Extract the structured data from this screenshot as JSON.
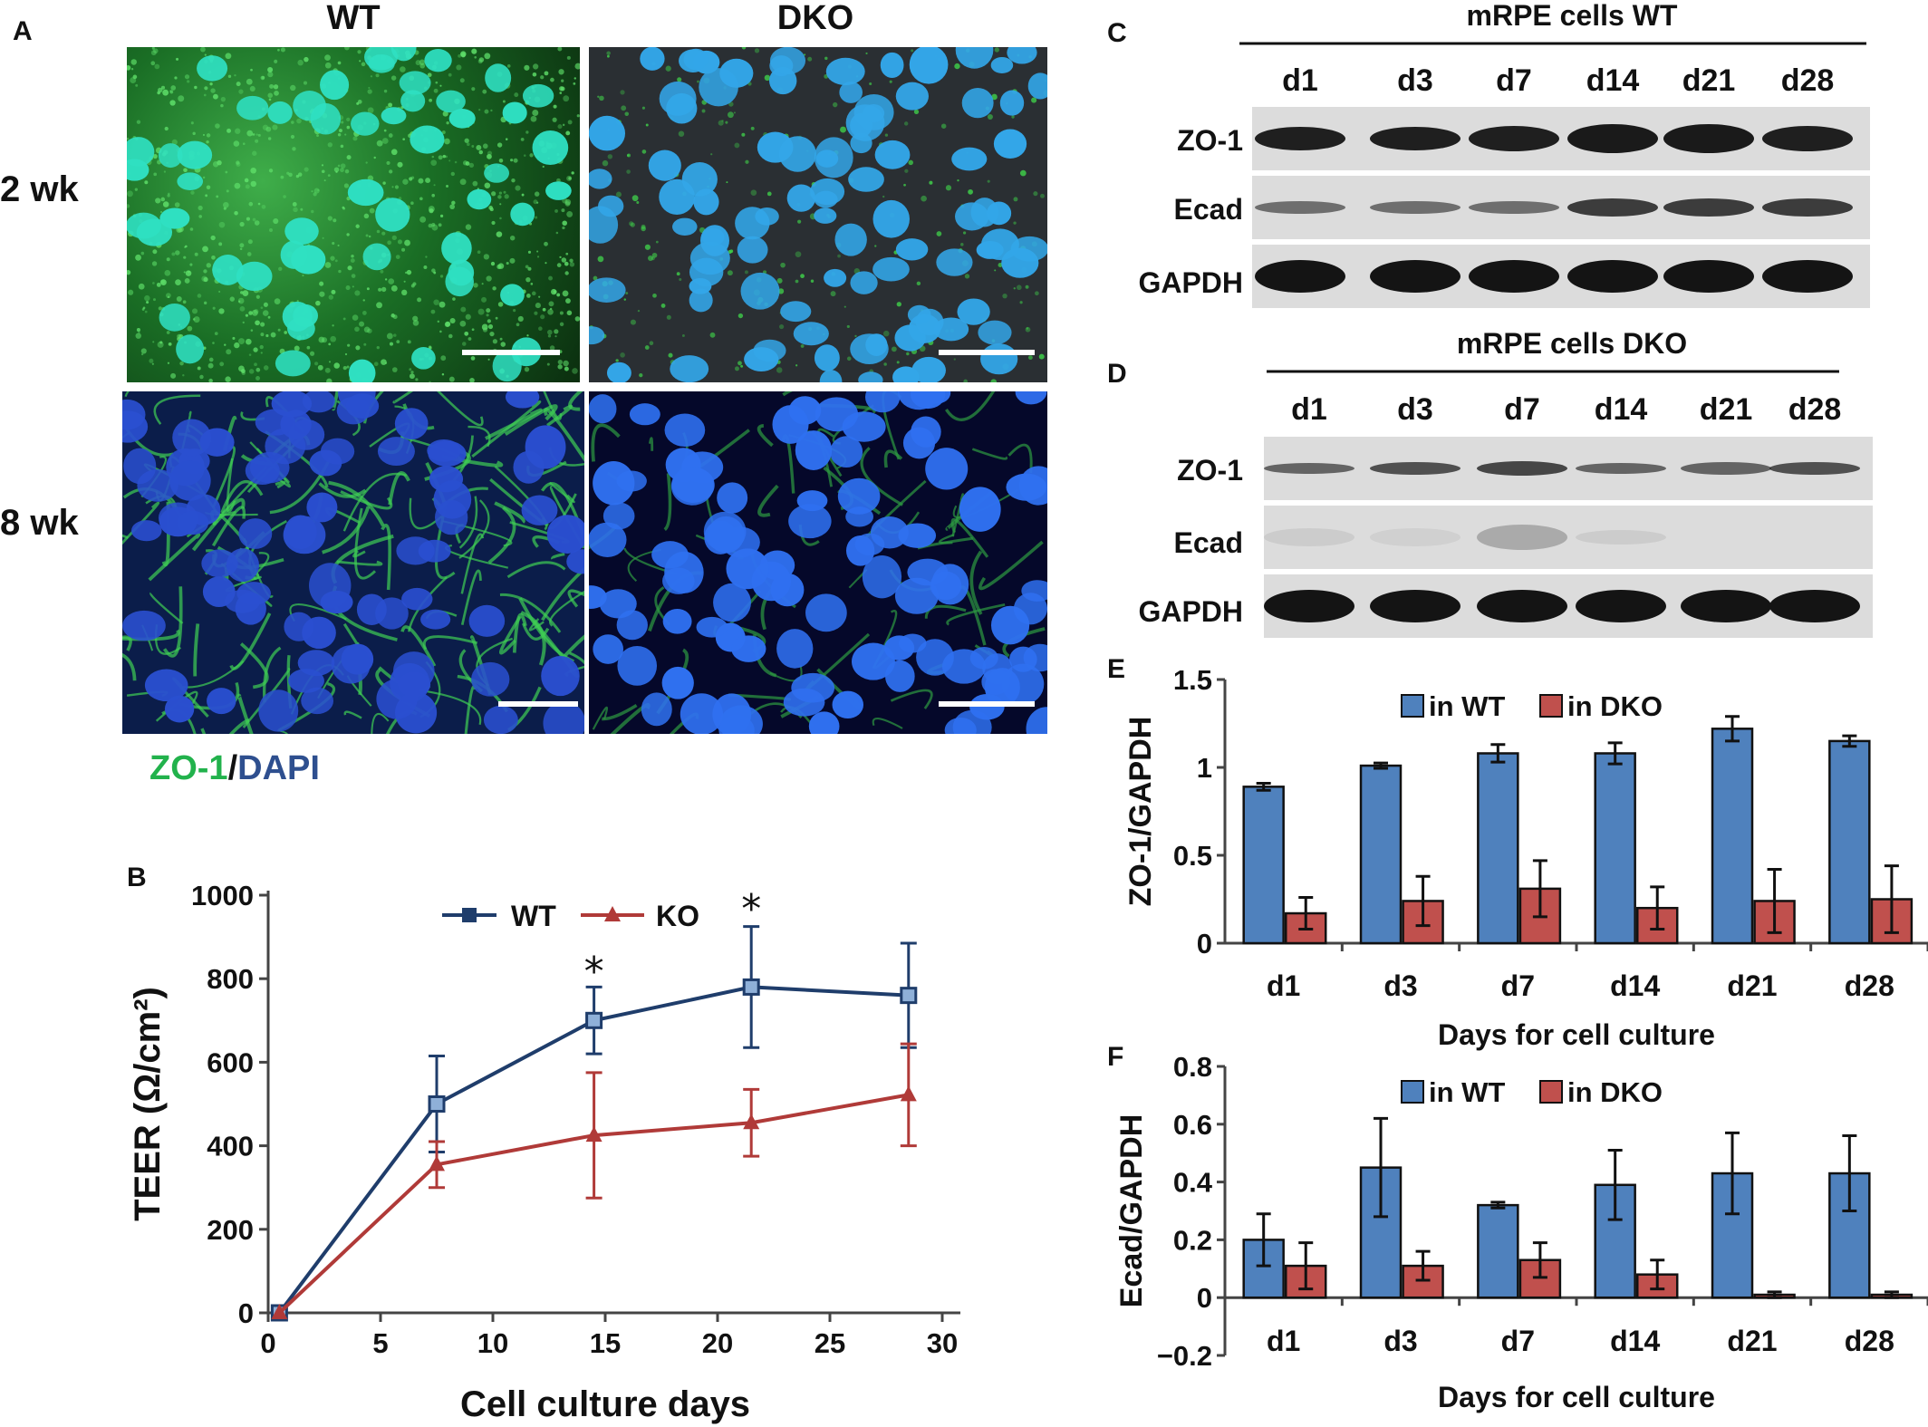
{
  "panel_letters": {
    "a": "A",
    "b": "B",
    "c": "C",
    "d": "D",
    "e": "E",
    "f": "F"
  },
  "panel_a": {
    "columns": [
      "WT",
      "DKO"
    ],
    "rows": [
      "2 wk",
      "8 wk"
    ],
    "stain_label_1": "ZO-1",
    "stain_label_sep": "/",
    "stain_label_2": "DAPI"
  },
  "panel_c": {
    "title": "mRPE cells WT",
    "lanes": [
      "d1",
      "d3",
      "d7",
      "d14",
      "d21",
      "d28"
    ],
    "rows": [
      "ZO-1",
      "Ecad",
      "GAPDH"
    ]
  },
  "panel_d": {
    "title": "mRPE cells DKO",
    "lanes": [
      "d1",
      "d3",
      "d7",
      "d14",
      "d21",
      "d28"
    ],
    "rows": [
      "ZO-1",
      "Ecad",
      "GAPDH"
    ]
  },
  "colors": {
    "wt_line": "#1f3d6b",
    "ko_line": "#b03a38",
    "bar_wt": "#4f81bd",
    "bar_dko": "#c0504d",
    "zo1_green": "#22b24c",
    "dapi_blue": "#2e4f8f"
  },
  "chart_data": [
    {
      "id": "B",
      "type": "line",
      "xlabel": "Cell culture days",
      "ylabel": "TEER (Ω/cm²)",
      "xlim": [
        0,
        30
      ],
      "ylim": [
        0,
        1000
      ],
      "xticks": [
        0,
        5,
        10,
        15,
        20,
        25,
        30
      ],
      "yticks": [
        0,
        200,
        400,
        600,
        800,
        1000
      ],
      "annotations": [
        {
          "text": "*",
          "x": 14.5,
          "y": 850
        },
        {
          "text": "*",
          "x": 21.5,
          "y": 1000
        }
      ],
      "legend_position": "top",
      "series": [
        {
          "name": "WT",
          "x": [
            0.5,
            7.5,
            14.5,
            21.5,
            28.5
          ],
          "y": [
            0,
            500,
            700,
            780,
            760
          ],
          "err": [
            0,
            115,
            80,
            145,
            125
          ]
        },
        {
          "name": "KO",
          "x": [
            0.5,
            7.5,
            14.5,
            21.5,
            28.5
          ],
          "y": [
            0,
            355,
            425,
            455,
            522
          ],
          "err": [
            0,
            55,
            150,
            80,
            122
          ]
        }
      ]
    },
    {
      "id": "E",
      "type": "bar",
      "xlabel": "Days for cell culture",
      "ylabel": "ZO-1/GAPDH",
      "ylim": [
        0,
        1.5
      ],
      "yticks": [
        "0",
        "0.5",
        "1",
        "1.5"
      ],
      "legend_position": "top",
      "categories": [
        "d1",
        "d3",
        "d7",
        "d14",
        "d21",
        "d28"
      ],
      "series": [
        {
          "name": "in WT",
          "values": [
            0.89,
            1.01,
            1.08,
            1.08,
            1.22,
            1.15
          ],
          "err": [
            0.02,
            0.015,
            0.05,
            0.06,
            0.07,
            0.03
          ]
        },
        {
          "name": "in DKO",
          "values": [
            0.17,
            0.24,
            0.31,
            0.2,
            0.24,
            0.25
          ],
          "err": [
            0.09,
            0.14,
            0.16,
            0.12,
            0.18,
            0.19
          ]
        }
      ]
    },
    {
      "id": "F",
      "type": "bar",
      "xlabel": "Days for cell culture",
      "ylabel": "Ecad/GAPDH",
      "ylim": [
        -0.2,
        0.8
      ],
      "yticks": [
        "−0.2",
        "0",
        "0.2",
        "0.4",
        "0.6",
        "0.8"
      ],
      "legend_position": "top",
      "categories": [
        "d1",
        "d3",
        "d7",
        "d14",
        "d21",
        "d28"
      ],
      "series": [
        {
          "name": "in WT",
          "values": [
            0.2,
            0.45,
            0.32,
            0.39,
            0.43,
            0.43
          ],
          "err": [
            0.09,
            0.17,
            0.01,
            0.12,
            0.14,
            0.13
          ]
        },
        {
          "name": "in DKO",
          "values": [
            0.11,
            0.11,
            0.13,
            0.08,
            0.01,
            0.01
          ],
          "err": [
            0.08,
            0.05,
            0.06,
            0.05,
            0.01,
            0.01
          ]
        }
      ]
    }
  ]
}
